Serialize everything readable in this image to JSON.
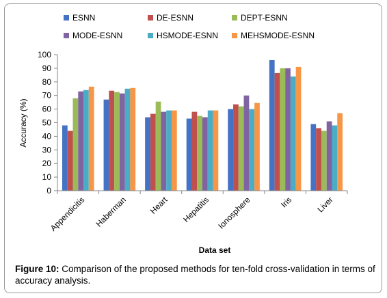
{
  "chart_data": {
    "type": "bar",
    "categories": [
      "Appendicitis",
      "Haberman",
      "Heart",
      "Hepatitis",
      "Ionosphere",
      "Iris",
      "Liver"
    ],
    "series": [
      {
        "name": "ESNN",
        "color": "#4472C4",
        "values": [
          48,
          67,
          54,
          53,
          60,
          96,
          49
        ]
      },
      {
        "name": "DE-ESNN",
        "color": "#C0504D",
        "values": [
          44,
          73.5,
          56.5,
          58,
          63.5,
          86.5,
          46
        ]
      },
      {
        "name": "DEPT-ESNN",
        "color": "#9BBB59",
        "values": [
          68,
          72.5,
          65.5,
          55,
          62,
          90,
          44
        ]
      },
      {
        "name": "MODE-ESNN",
        "color": "#8064A2",
        "values": [
          73,
          71.5,
          58,
          54,
          70,
          90,
          51
        ]
      },
      {
        "name": "HSMODE-ESNN",
        "color": "#4BACC6",
        "values": [
          74,
          75,
          59,
          59,
          60,
          84,
          48
        ]
      },
      {
        "name": "MEHSMODE-ESNN",
        "color": "#F79646",
        "values": [
          76.5,
          75.5,
          59,
          59,
          64.5,
          91,
          57
        ]
      }
    ],
    "xlabel": "Data set",
    "ylabel": "Accuracy (%)",
    "ylim": [
      0,
      100
    ],
    "yticks": [
      "0",
      "10",
      "20",
      "30",
      "40",
      "50",
      "60",
      "70",
      "80",
      "90",
      "100"
    ],
    "grid": false,
    "legend": "top"
  },
  "caption": {
    "label": "Figure 10:",
    "text": " Comparison of the proposed methods for ten-fold cross-validation in terms of accuracy analysis."
  }
}
